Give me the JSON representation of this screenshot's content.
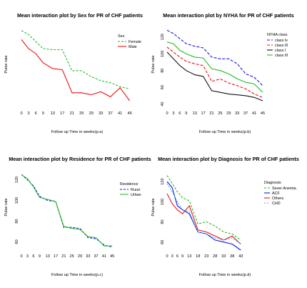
{
  "chart_data": [
    {
      "type": "line",
      "title": "Mean interaction plot by Sex for PR of CHF patients",
      "xlabel": "Follow up Time in weeks(p.a)",
      "ylabel": "Pulse rate",
      "xlim": [
        0,
        46
      ],
      "ylim": [
        55,
        132
      ],
      "xticks": [
        0,
        3,
        6,
        9,
        13,
        17,
        21,
        25,
        29,
        33,
        37,
        41,
        45
      ],
      "yticks": [],
      "legend": {
        "title": "Sex",
        "position": "top-right"
      },
      "series": [
        {
          "name": "Female",
          "color": "#22bb22",
          "dash": "3,2",
          "x": [
            0,
            3,
            6,
            9,
            13,
            17,
            21,
            25,
            29,
            33,
            37,
            41,
            45
          ],
          "y": [
            130,
            126,
            119,
            112,
            111,
            111,
            90,
            90,
            84,
            80,
            78,
            74,
            72
          ]
        },
        {
          "name": "Male",
          "color": "#ee1111",
          "dash": "",
          "x": [
            0,
            3,
            6,
            9,
            13,
            17,
            21,
            25,
            29,
            33,
            37,
            41,
            45
          ],
          "y": [
            121,
            112,
            107,
            98,
            92,
            91,
            68,
            68,
            66,
            69,
            64,
            73,
            60
          ]
        }
      ]
    },
    {
      "type": "line",
      "title": "Mean interaction plot by NYHA for PR of CHF patients",
      "xlabel": "Follow up Time in weeks(p.b)",
      "ylabel": "Pulse rate",
      "xlim": [
        0,
        45
      ],
      "ylim": [
        38,
        130
      ],
      "xticks": [
        0,
        3,
        6,
        9,
        13,
        17,
        21,
        25,
        29,
        33,
        37,
        41,
        45
      ],
      "yticks": [
        40,
        60,
        80,
        100,
        120
      ],
      "legend": {
        "title": "NYHA class",
        "position": "top-right"
      },
      "series": [
        {
          "name": "class Iv",
          "color": "#1111ee",
          "dash": "4,2",
          "x": [
            0,
            3,
            6,
            9,
            13,
            17,
            21,
            25,
            29,
            33,
            37,
            41,
            45
          ],
          "y": [
            128,
            124,
            118,
            112,
            109,
            107,
            96,
            94,
            94,
            88,
            76,
            72,
            62
          ]
        },
        {
          "name": "class III",
          "color": "#ee1111",
          "dash": "4,2",
          "x": [
            0,
            3,
            6,
            9,
            13,
            17,
            21,
            25,
            29,
            33,
            37,
            41,
            45
          ],
          "y": [
            108,
            102,
            96,
            91,
            88,
            86,
            67,
            70,
            65,
            62,
            58,
            52,
            48
          ]
        },
        {
          "name": "class I",
          "color": "#111111",
          "dash": "",
          "x": [
            0,
            3,
            6,
            9,
            13,
            17,
            21,
            25,
            29,
            33,
            37,
            41,
            45
          ],
          "y": [
            102,
            94,
            86,
            80,
            75,
            73,
            56,
            54,
            52,
            51,
            50,
            48,
            44
          ]
        },
        {
          "name": "class III",
          "color": "#22bb22",
          "dash": "",
          "x": [
            0,
            3,
            6,
            9,
            13,
            17,
            21,
            25,
            29,
            33,
            37,
            41,
            45
          ],
          "y": [
            114,
            112,
            104,
            100,
            96,
            95,
            82,
            80,
            76,
            70,
            66,
            64,
            54
          ]
        }
      ]
    },
    {
      "type": "line",
      "title": "Mean interaction plot by Residence for PR of CHF patients",
      "xlabel": "Follow up Time in weeks(p.c)",
      "ylabel": "Pulse rate",
      "xlim": [
        0,
        46
      ],
      "ylim": [
        52,
        128
      ],
      "xticks": [
        0,
        3,
        6,
        9,
        13,
        17,
        21,
        25,
        29,
        33,
        37,
        41,
        45
      ],
      "yticks": [
        60,
        80,
        100,
        120
      ],
      "legend": {
        "title": "Residence",
        "position": "top-right"
      },
      "series": [
        {
          "name": "Rural",
          "color": "#1111ee",
          "dash": "3,2",
          "x": [
            0,
            3,
            6,
            9,
            13,
            17,
            21,
            25,
            29,
            33,
            37,
            41,
            45
          ],
          "y": [
            125,
            120,
            114,
            104,
            100,
            99,
            74,
            74,
            73,
            64,
            63,
            57,
            55
          ]
        },
        {
          "name": "Urban",
          "color": "#22bb22",
          "dash": "",
          "x": [
            0,
            3,
            6,
            9,
            13,
            17,
            21,
            25,
            29,
            33,
            37,
            41,
            45
          ],
          "y": [
            125,
            121,
            113,
            103,
            101,
            99,
            75,
            73,
            72,
            65,
            64,
            56,
            56
          ]
        }
      ]
    },
    {
      "type": "line",
      "title": "Mean interaction plot by Diagnosis for PR of CHF patients",
      "xlabel": "Follow up Time in weeks(p.d)",
      "ylabel": "Pulse rate",
      "xlim": [
        0,
        45
      ],
      "ylim": [
        52,
        130
      ],
      "xticks": [
        0,
        3,
        6,
        9,
        13,
        18,
        23,
        28,
        33,
        38,
        43
      ],
      "yticks": [
        60,
        80,
        100,
        120
      ],
      "legend": {
        "title": "Diagnosis",
        "position": "top-right"
      },
      "series": [
        {
          "name": "Sever Anemia.",
          "color": "#22bb22",
          "dash": "3,2",
          "x": [
            0,
            3,
            6,
            9,
            13,
            18,
            23,
            28,
            33,
            38,
            43
          ],
          "y": [
            126,
            118,
            110,
            104,
            101,
            78,
            80,
            76,
            70,
            68,
            62
          ]
        },
        {
          "name": "ACF",
          "color": "#1111ee",
          "dash": "",
          "x": [
            0,
            3,
            6,
            9,
            13,
            18,
            23,
            28,
            33,
            38,
            43
          ],
          "y": [
            120,
            114,
            96,
            92,
            88,
            70,
            68,
            62,
            60,
            58,
            52
          ]
        },
        {
          "name": "Others",
          "color": "#ee1111",
          "dash": "",
          "x": [
            0,
            3,
            6,
            9,
            13,
            18,
            23,
            28,
            33,
            38,
            43
          ],
          "y": [
            108,
            98,
            92,
            88,
            96,
            72,
            70,
            66,
            62,
            66,
            58
          ]
        },
        {
          "name": "CHD",
          "color": "#33bbee",
          "dash": "2,2",
          "x": [
            0,
            3,
            6,
            9,
            13,
            18,
            23,
            28,
            33,
            38,
            43
          ],
          "y": [
            118,
            110,
            100,
            92,
            90,
            70,
            68,
            64,
            62,
            64,
            58
          ]
        }
      ]
    }
  ]
}
